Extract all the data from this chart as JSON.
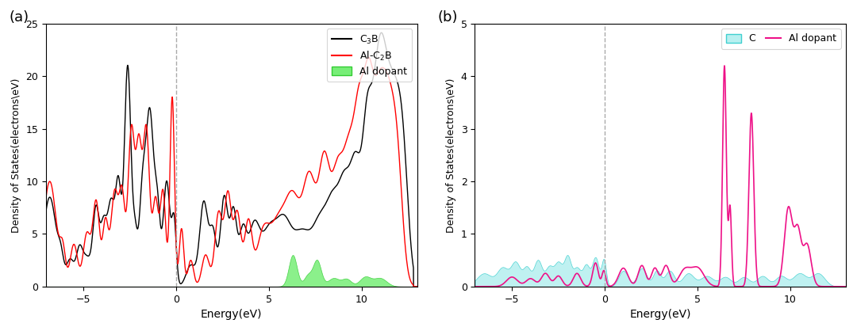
{
  "fig_width": 10.8,
  "fig_height": 4.18,
  "panel_a": {
    "label": "(a)",
    "xlim": [
      -7,
      13
    ],
    "ylim": [
      0,
      25
    ],
    "xlabel": "Energy(eV)",
    "ylabel": "Density of States(electrons\\eV)",
    "yticks": [
      0,
      5,
      10,
      15,
      20,
      25
    ],
    "xticks": [
      -5,
      0,
      5,
      10
    ],
    "vline": 0,
    "colors": {
      "c3b": "#000000",
      "alc2b": "#ff0000",
      "al_dopant_fill": "#77ee77",
      "al_dopant_edge": "#33cc33"
    }
  },
  "panel_b": {
    "label": "(b)",
    "xlim": [
      -7,
      13
    ],
    "ylim": [
      0,
      5
    ],
    "xlabel": "Energy(eV)",
    "ylabel": "Density of States(electrons\\eV)",
    "yticks": [
      0,
      1,
      2,
      3,
      4,
      5
    ],
    "xticks": [
      -5,
      0,
      5,
      10
    ],
    "vline": 0,
    "colors": {
      "c_fill": "#b8f0f0",
      "c_edge": "#40d0d0",
      "al_dopant": "#ee1188"
    }
  }
}
